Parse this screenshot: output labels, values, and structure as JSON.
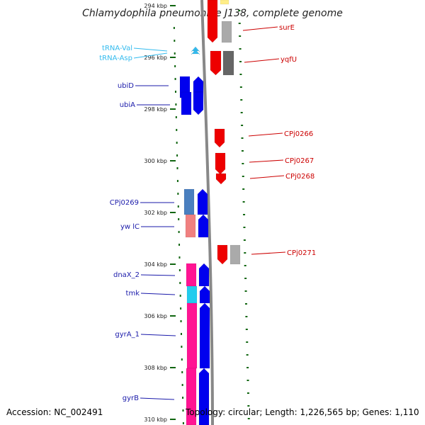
{
  "title": "Chlamydophila pneumoniae J138, complete genome",
  "footer": {
    "accession": "Accession: NC_002491",
    "topology": "Topology: circular; Length: 1,226,565 bp; Genes: 1,110"
  },
  "axis": {
    "ticks": [
      {
        "label": "294 kbp",
        "kb": 294
      },
      {
        "label": "296 kbp",
        "kb": 296
      },
      {
        "label": "298 kbp",
        "kb": 298
      },
      {
        "label": "300 kbp",
        "kb": 300
      },
      {
        "label": "302 kbp",
        "kb": 302
      },
      {
        "label": "304 kbp",
        "kb": 304
      },
      {
        "label": "306 kbp",
        "kb": 306
      },
      {
        "label": "308 kbp",
        "kb": 308
      },
      {
        "label": "310 kbp",
        "kb": 310
      }
    ]
  },
  "left_labels": [
    {
      "text": "tRNA-Val",
      "color": "#33bbee"
    },
    {
      "text": "tRNA-Asp",
      "color": "#33bbee"
    },
    {
      "text": "ubiD",
      "color": "#1a1aaa"
    },
    {
      "text": "ubiA",
      "color": "#1a1aaa"
    },
    {
      "text": "CPj0269",
      "color": "#1a1aaa"
    },
    {
      "text": "yw lC",
      "color": "#1a1aaa"
    },
    {
      "text": "dnaX_2",
      "color": "#1a1aaa"
    },
    {
      "text": "tmk",
      "color": "#1a1aaa"
    },
    {
      "text": "gyrA_1",
      "color": "#1a1aaa"
    },
    {
      "text": "gyrB",
      "color": "#1a1aaa"
    }
  ],
  "right_labels": [
    {
      "text": "surE",
      "color": "#cc0000"
    },
    {
      "text": "yqfU",
      "color": "#cc0000"
    },
    {
      "text": "CPj0266",
      "color": "#cc0000"
    },
    {
      "text": "CPj0267",
      "color": "#cc0000"
    },
    {
      "text": "CPj0268",
      "color": "#cc0000"
    },
    {
      "text": "CPj0271",
      "color": "#cc0000"
    }
  ],
  "colors": {
    "forward_gene": "#0000ee",
    "reverse_gene": "#ee0000",
    "trna": "#33bbee",
    "tick": "#116611",
    "backbone": "#888888",
    "grey_gene": "#aaaaaa",
    "dark_grey_gene": "#666666",
    "pink_gene": "#ff1493",
    "steel_gene": "#4a7fbf",
    "salmon_gene": "#f08080",
    "cyan_gene": "#22ccee",
    "yellow_gene": "#ffee88"
  }
}
